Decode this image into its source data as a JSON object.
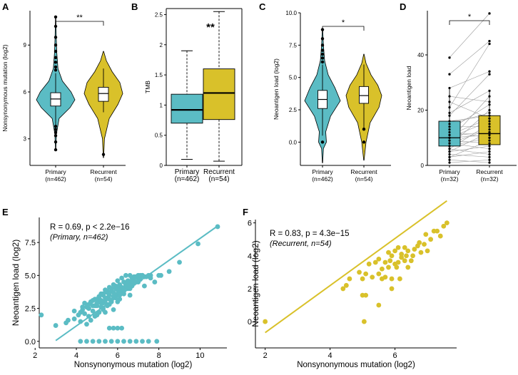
{
  "colors": {
    "primary": "#5bbcc4",
    "recurrent": "#d9c12a",
    "axis": "#000000",
    "pair_line": "#9a9a9a"
  },
  "chart_data": [
    {
      "panel": "A",
      "type": "violin",
      "ylabel": "Nonsynonymous mutation (log2)",
      "ylim": [
        1.3,
        11.2
      ],
      "yticks": [
        3,
        6,
        9
      ],
      "categories": [
        "Primary",
        "Recurrent"
      ],
      "n_labels": [
        "(n=462)",
        "(n=54)"
      ],
      "groups": [
        {
          "name": "Primary",
          "q1": 5.1,
          "median": 5.55,
          "q3": 5.95,
          "whisker_low": 3.9,
          "whisker_high": 7.2,
          "outliers": [
            2.3,
            2.8,
            3.2,
            3.4,
            3.6,
            3.8,
            7.4,
            7.6,
            7.9,
            8.2,
            8.6,
            9.0,
            9.5,
            10.2,
            10.8
          ],
          "violin": [
            [
              2.3,
              0.01
            ],
            [
              3.3,
              0.04
            ],
            [
              4.3,
              0.18
            ],
            [
              5.0,
              0.75
            ],
            [
              5.5,
              1.0
            ],
            [
              6.0,
              0.8
            ],
            [
              6.7,
              0.35
            ],
            [
              7.5,
              0.12
            ],
            [
              8.5,
              0.06
            ],
            [
              9.5,
              0.03
            ],
            [
              10.8,
              0.01
            ]
          ]
        },
        {
          "name": "Recurrent",
          "q1": 5.4,
          "median": 5.9,
          "q3": 6.3,
          "whisker_low": 4.7,
          "whisker_high": 7.5,
          "outliers": [
            2.0
          ],
          "violin": [
            [
              1.8,
              0.01
            ],
            [
              3.0,
              0.05
            ],
            [
              4.3,
              0.3
            ],
            [
              5.2,
              0.75
            ],
            [
              5.9,
              1.0
            ],
            [
              6.6,
              0.85
            ],
            [
              7.3,
              0.45
            ],
            [
              8.0,
              0.15
            ],
            [
              8.6,
              0.01
            ]
          ]
        }
      ],
      "significance": "**"
    },
    {
      "panel": "B",
      "type": "boxplot",
      "ylabel": "TMB",
      "ylim": [
        0,
        2.6
      ],
      "yticks": [
        0,
        0.5,
        1.0,
        1.5,
        2.0,
        2.5
      ],
      "categories": [
        "Primary",
        "Recurrent"
      ],
      "n_labels": [
        "(n=462)",
        "(n=54)"
      ],
      "groups": [
        {
          "name": "Primary",
          "q1": 0.7,
          "median": 0.92,
          "q3": 1.18,
          "whisker_low": 0.1,
          "whisker_high": 1.9
        },
        {
          "name": "Recurrent",
          "q1": 0.76,
          "median": 1.2,
          "q3": 1.6,
          "whisker_low": 0.07,
          "whisker_high": 2.55
        }
      ],
      "significance": "**"
    },
    {
      "panel": "C",
      "type": "violin",
      "ylabel": "Neoantigen load (log2)",
      "ylim": [
        -1.8,
        10
      ],
      "yticks": [
        0.0,
        2.5,
        5.0,
        7.5,
        10.0
      ],
      "ytick_labels": [
        "0.0",
        "2.5",
        "5.0",
        "7.5",
        "10.0"
      ],
      "categories": [
        "Primary",
        "Recurrent"
      ],
      "n_labels": [
        "(n=462)",
        "(n=54)"
      ],
      "groups": [
        {
          "name": "Primary",
          "q1": 2.6,
          "median": 3.3,
          "q3": 4.0,
          "whisker_low": 0.5,
          "whisker_high": 6.0,
          "outliers": [
            0.0,
            6.2,
            6.5,
            6.8,
            7.1,
            7.5,
            8.0,
            8.7
          ],
          "violin": [
            [
              -1.6,
              0.01
            ],
            [
              -0.5,
              0.05
            ],
            [
              0.0,
              0.22
            ],
            [
              0.8,
              0.18
            ],
            [
              2.0,
              0.45
            ],
            [
              3.2,
              1.0
            ],
            [
              4.2,
              0.7
            ],
            [
              5.2,
              0.32
            ],
            [
              6.3,
              0.12
            ],
            [
              7.5,
              0.05
            ],
            [
              8.8,
              0.01
            ]
          ]
        },
        {
          "name": "Recurrent",
          "q1": 3.0,
          "median": 3.6,
          "q3": 4.3,
          "whisker_low": 1.1,
          "whisker_high": 6.0,
          "outliers": [
            0.0,
            1.0
          ],
          "violin": [
            [
              -1.4,
              0.01
            ],
            [
              0.0,
              0.12
            ],
            [
              1.5,
              0.35
            ],
            [
              2.7,
              0.85
            ],
            [
              3.6,
              1.0
            ],
            [
              4.4,
              0.78
            ],
            [
              5.2,
              0.4
            ],
            [
              6.1,
              0.12
            ],
            [
              6.8,
              0.01
            ]
          ]
        }
      ],
      "significance": "*"
    },
    {
      "panel": "D",
      "type": "paired_boxplot",
      "ylabel": "Neoantigen load",
      "ylim": [
        0,
        56
      ],
      "yticks": [
        0,
        20,
        40
      ],
      "categories": [
        "Primary",
        "Recurrent"
      ],
      "n_labels": [
        "(n=32)",
        "(n=32)"
      ],
      "groups": [
        {
          "name": "Primary",
          "q1": 7,
          "median": 10,
          "q3": 16,
          "whisker_low": 1,
          "whisker_high": 28,
          "outliers": [
            33,
            39
          ]
        },
        {
          "name": "Recurrent",
          "q1": 7.5,
          "median": 11.5,
          "q3": 18,
          "whisker_low": 1,
          "whisker_high": 27,
          "outliers": [
            33,
            34,
            44,
            45,
            55
          ]
        }
      ],
      "pairs": [
        [
          1,
          2
        ],
        [
          2,
          1
        ],
        [
          3,
          5
        ],
        [
          3,
          9
        ],
        [
          4,
          3
        ],
        [
          5,
          12
        ],
        [
          5,
          7
        ],
        [
          6,
          15
        ],
        [
          6,
          4
        ],
        [
          7,
          10
        ],
        [
          7,
          20
        ],
        [
          8,
          6
        ],
        [
          8,
          13
        ],
        [
          9,
          25
        ],
        [
          9,
          8
        ],
        [
          10,
          11
        ],
        [
          10,
          16
        ],
        [
          11,
          17
        ],
        [
          11,
          12
        ],
        [
          12,
          10
        ],
        [
          13,
          22
        ],
        [
          14,
          14
        ],
        [
          15,
          19
        ],
        [
          16,
          18
        ],
        [
          18,
          33
        ],
        [
          19,
          27
        ],
        [
          21,
          44
        ],
        [
          23,
          17
        ],
        [
          25,
          23
        ],
        [
          28,
          34
        ],
        [
          33,
          45
        ],
        [
          39,
          55
        ]
      ],
      "significance": "*"
    },
    {
      "panel": "E",
      "type": "scatter",
      "xlabel": "Nonsynonymous mutation (log2)",
      "ylabel": "Neoantigen load (log2)",
      "xlim": [
        2.2,
        11.3
      ],
      "ylim": [
        -0.5,
        9.4
      ],
      "xticks": [
        2,
        4,
        6,
        8,
        10
      ],
      "yticks": [
        0.0,
        2.5,
        5.0,
        7.5
      ],
      "ytick_labels": [
        "0.0",
        "2.5",
        "5.0",
        "7.5"
      ],
      "fit": {
        "intercept": -3.26,
        "slope": 1.107,
        "x_range": [
          3.0,
          10.85
        ]
      },
      "annotation": {
        "line1": "R = 0.69, p < 2.2e−16",
        "line2": "(Primary, n=462)"
      },
      "x": [
        2.3,
        3.0,
        3.5,
        3.9,
        4.2,
        4.4,
        4.6,
        4.8,
        5.0,
        5.2,
        5.4,
        5.6,
        5.8,
        6.0,
        4.3,
        4.6,
        4.9,
        5.1,
        5.3,
        5.5,
        5.7,
        5.9,
        6.1,
        6.3,
        6.6,
        3.6,
        3.9,
        4.2,
        4.4,
        4.6,
        4.8,
        5.0,
        5.1,
        5.2,
        5.3,
        5.4,
        5.5,
        5.6,
        5.7,
        5.8,
        5.9,
        6.0,
        6.1,
        6.2,
        6.4,
        6.6,
        6.8,
        7.0,
        4.1,
        4.3,
        4.5,
        4.7,
        4.9,
        5.1,
        5.3,
        5.5,
        5.7,
        5.9,
        6.1,
        6.3,
        6.5,
        6.7,
        6.9,
        7.2,
        4.6,
        4.8,
        5.0,
        5.2,
        5.4,
        5.6,
        5.8,
        6.0,
        6.2,
        6.4,
        6.6,
        6.8,
        7.0,
        7.3,
        7.6,
        4.5,
        4.7,
        4.9,
        5.1,
        5.3,
        5.5,
        5.7,
        5.9,
        6.1,
        6.3,
        6.5,
        6.7,
        6.9,
        7.1,
        7.4,
        5.0,
        5.2,
        5.4,
        5.6,
        5.8,
        6.0,
        6.2,
        6.4,
        6.6,
        6.8,
        7.0,
        7.2,
        7.5,
        5.1,
        5.3,
        5.5,
        5.7,
        5.9,
        6.1,
        6.3,
        6.5,
        6.7,
        6.9,
        7.1,
        7.6,
        8.0,
        7.3,
        7.8,
        8.1,
        8.5,
        9.0,
        9.9,
        10.85,
        4.2,
        4.5,
        4.8,
        5.1,
        5.4,
        5.7,
        6.0,
        6.3,
        6.6,
        6.9,
        7.2,
        7.5,
        7.9,
        5.6,
        5.8,
        6.0,
        6.2
      ],
      "y": [
        2.0,
        1.2,
        1.4,
        1.7,
        1.5,
        2.1,
        1.9,
        2.3,
        2.0,
        2.6,
        2.2,
        2.8,
        2.4,
        3.0,
        2.6,
        2.8,
        2.7,
        3.1,
        2.9,
        3.3,
        3.0,
        3.4,
        3.2,
        3.6,
        3.5,
        1.6,
        2.3,
        2.2,
        2.9,
        2.5,
        3.1,
        2.7,
        3.3,
        2.9,
        3.5,
        3.1,
        3.7,
        3.2,
        3.8,
        3.4,
        4.0,
        3.6,
        4.1,
        3.8,
        4.2,
        4.0,
        4.4,
        4.5,
        2.0,
        2.4,
        2.6,
        3.0,
        3.2,
        3.4,
        3.6,
        3.8,
        4.0,
        4.2,
        4.3,
        4.5,
        4.6,
        4.8,
        4.9,
        5.0,
        2.5,
        2.7,
        2.9,
        3.1,
        3.3,
        3.5,
        3.7,
        3.9,
        4.1,
        4.3,
        4.4,
        4.6,
        4.8,
        4.9,
        5.0,
        1.3,
        1.6,
        1.9,
        2.2,
        2.5,
        2.8,
        3.1,
        3.4,
        3.7,
        4.0,
        4.3,
        4.6,
        4.9,
        5.0,
        4.9,
        3.2,
        3.6,
        3.9,
        4.1,
        4.3,
        4.6,
        4.8,
        5.0,
        5.0,
        4.9,
        5.0,
        5.0,
        5.0,
        2.2,
        2.4,
        2.7,
        3.0,
        3.3,
        3.5,
        3.8,
        4.0,
        4.2,
        4.5,
        4.7,
        4.8,
        5.0,
        4.2,
        4.5,
        5.0,
        5.3,
        6.0,
        7.4,
        8.7,
        0.0,
        0.0,
        0.0,
        0.0,
        0.0,
        0.0,
        0.0,
        0.0,
        0.0,
        0.0,
        0.0,
        0.0,
        0.0,
        1.0,
        1.0,
        1.0,
        1.0
      ]
    },
    {
      "panel": "F",
      "type": "scatter",
      "xlabel": "Nonsynonymous mutation (log2)",
      "ylabel": "Neoantigen load (log2)",
      "xlim": [
        1.7,
        7.9
      ],
      "ylim": [
        -1.6,
        6.2
      ],
      "xticks": [
        2,
        4,
        6
      ],
      "yticks": [
        0,
        2,
        4,
        6
      ],
      "fit": {
        "intercept": -3.53,
        "slope": 1.43,
        "x_range": [
          2.0,
          7.6
        ]
      },
      "annotation": {
        "line1": "R = 0.83, p = 4.3e−15",
        "line2": "(Recurrent, n=54)"
      },
      "x": [
        2.0,
        4.4,
        4.5,
        4.6,
        4.9,
        5.0,
        5.1,
        5.05,
        5.1,
        5.2,
        5.3,
        5.4,
        5.5,
        5.5,
        5.6,
        5.6,
        5.7,
        5.7,
        5.8,
        5.8,
        5.85,
        5.9,
        5.9,
        6.0,
        6.0,
        6.05,
        6.1,
        6.1,
        6.15,
        6.2,
        6.2,
        6.3,
        6.3,
        6.35,
        6.4,
        6.4,
        6.5,
        6.55,
        6.6,
        6.7,
        6.75,
        6.8,
        6.9,
        6.95,
        7.0,
        7.1,
        7.2,
        7.3,
        7.4,
        7.5,
        7.6,
        5.0,
        5.5,
        5.9
      ],
      "y": [
        0.0,
        2.0,
        2.2,
        2.6,
        3.0,
        2.6,
        1.6,
        0.0,
        2.9,
        3.5,
        2.7,
        3.6,
        2.9,
        3.8,
        2.6,
        3.2,
        3.6,
        2.7,
        3.3,
        4.2,
        3.7,
        2.6,
        4.0,
        3.5,
        4.3,
        3.3,
        3.6,
        4.5,
        2.6,
        3.9,
        4.1,
        3.7,
        4.5,
        4.0,
        3.3,
        4.3,
        3.7,
        4.0,
        4.4,
        4.6,
        4.8,
        4.2,
        4.7,
        5.3,
        4.3,
        5.0,
        5.5,
        5.5,
        5.2,
        5.8,
        6.0,
        1.6,
        1.0,
        2.0
      ]
    }
  ]
}
